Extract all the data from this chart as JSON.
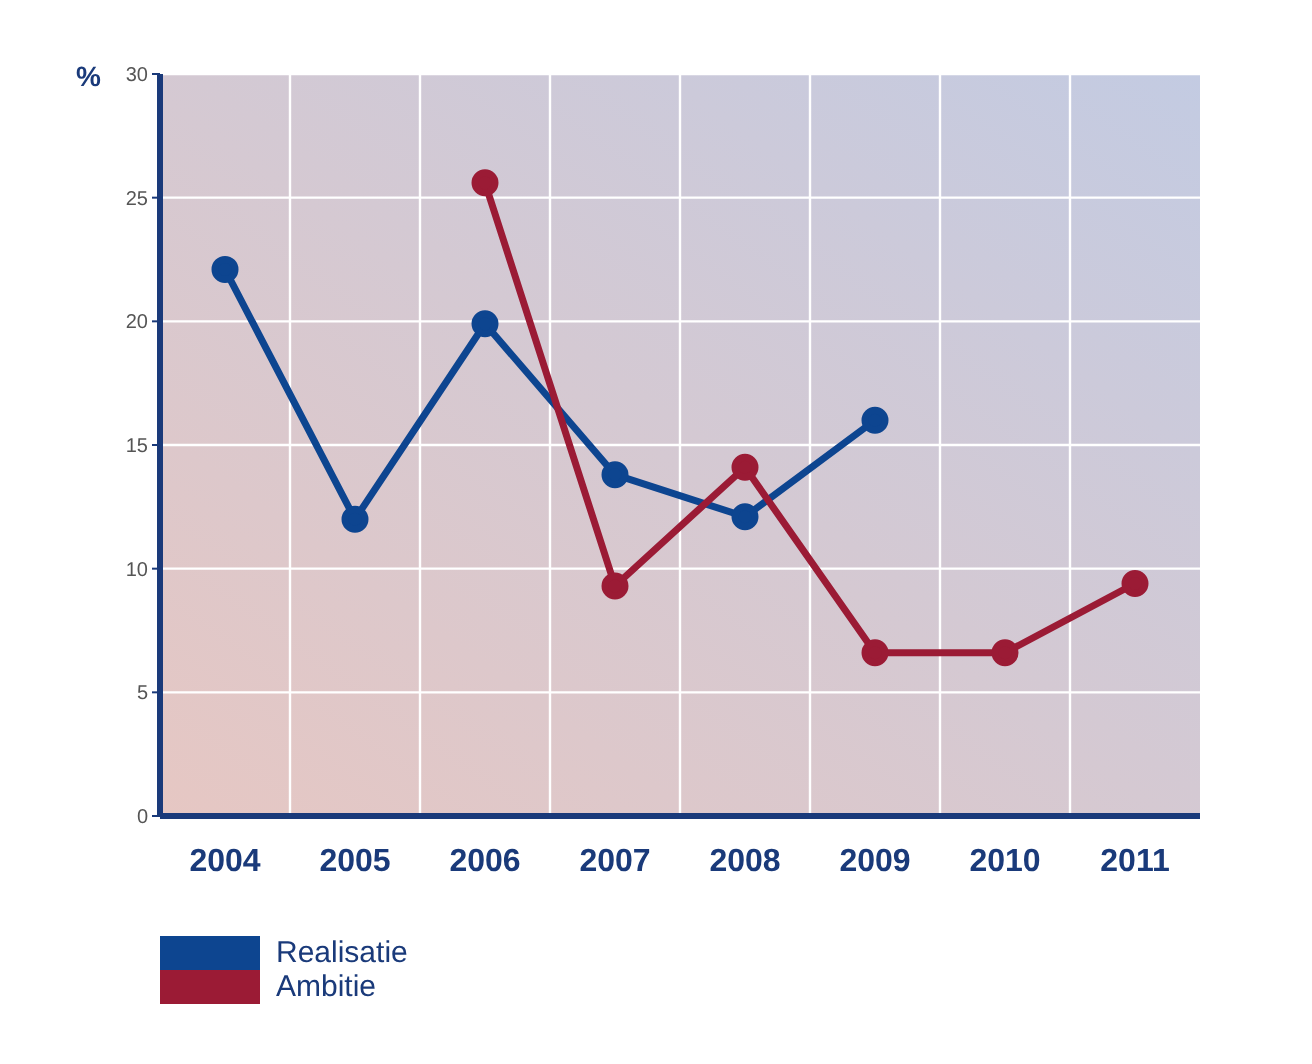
{
  "chart_data": {
    "type": "line",
    "ylabel": "%",
    "categories": [
      "2004",
      "2005",
      "2006",
      "2007",
      "2008",
      "2009",
      "2010",
      "2011"
    ],
    "series": [
      {
        "name": "Realisatie",
        "color": "#0d4590",
        "values": [
          22.1,
          12.0,
          19.9,
          13.8,
          12.1,
          16.0,
          null,
          null
        ]
      },
      {
        "name": "Ambitie",
        "color": "#9b1b35",
        "values": [
          null,
          null,
          25.6,
          9.3,
          14.1,
          6.6,
          6.6,
          9.4
        ]
      }
    ],
    "ylim": [
      0,
      30
    ],
    "yticks": [
      0,
      5,
      10,
      15,
      20,
      25,
      30
    ],
    "grid": true,
    "legend": "bottom left",
    "marker": "circle",
    "line_style": "solid"
  }
}
